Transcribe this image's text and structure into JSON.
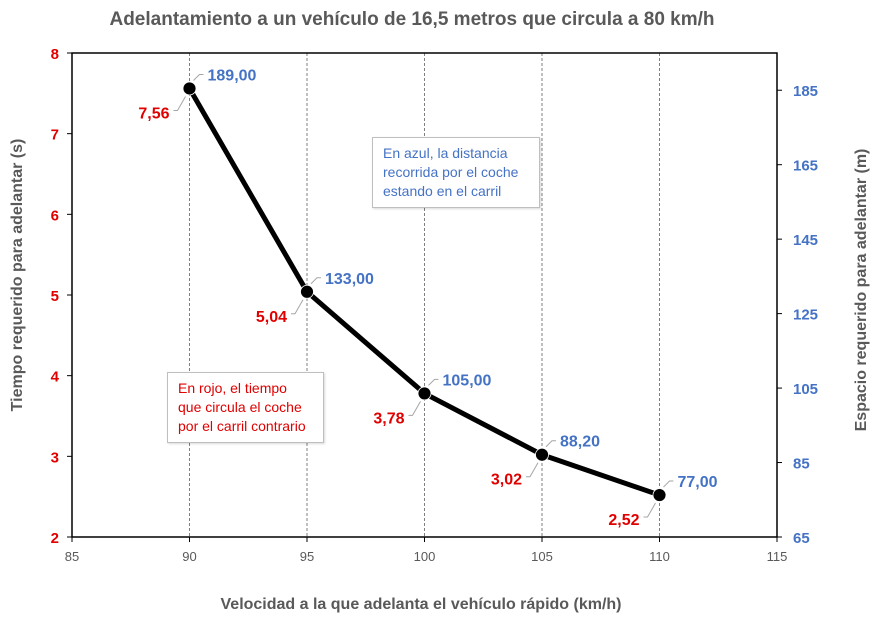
{
  "chart_data": {
    "type": "line",
    "title": "Adelantamiento a un vehículo de 16,5 metros que circula a 80 km/h",
    "xlabel": "Velocidad a la que adelanta el vehículo rápido (km/h)",
    "ylabel": "Tiempo requerido para adelantar (s)",
    "y2label": "Espacio requerido para adelantar (m)",
    "xlim": [
      85,
      115
    ],
    "ylim": [
      2,
      8
    ],
    "y2lim": [
      65,
      195
    ],
    "x_ticks": [
      "85",
      "90",
      "95",
      "100",
      "105",
      "110",
      "115"
    ],
    "y_ticks": [
      "2",
      "3",
      "4",
      "5",
      "6",
      "7",
      "8"
    ],
    "y2_ticks": [
      "65",
      "85",
      "105",
      "125",
      "145",
      "165",
      "185"
    ],
    "x": [
      90,
      95,
      100,
      105,
      110
    ],
    "series": [
      {
        "axis": "left",
        "values": [
          7.56,
          5.04,
          3.78,
          3.02,
          2.52
        ],
        "labels": [
          "7,56",
          "5,04",
          "3,78",
          "3,02",
          "2,52"
        ],
        "color": "#e00000"
      },
      {
        "axis": "right",
        "values": [
          189.0,
          133.0,
          105.0,
          88.2,
          77.0
        ],
        "labels": [
          "189,00",
          "133,00",
          "105,00",
          "88,20",
          "77,00"
        ],
        "color": "#4472c4"
      }
    ],
    "line_color": "#000000",
    "grid": "vertical dashed",
    "annotations": [
      "En azul, la distancia recorrida por el coche estando en el carril",
      "En rojo, el tiempo que circula el coche por el carril contrario"
    ]
  },
  "notes": {
    "blue": "En azul, la distancia recorrida por el coche estando en el carril",
    "red": "En rojo, el tiempo que circula el coche por el carril contrario"
  }
}
